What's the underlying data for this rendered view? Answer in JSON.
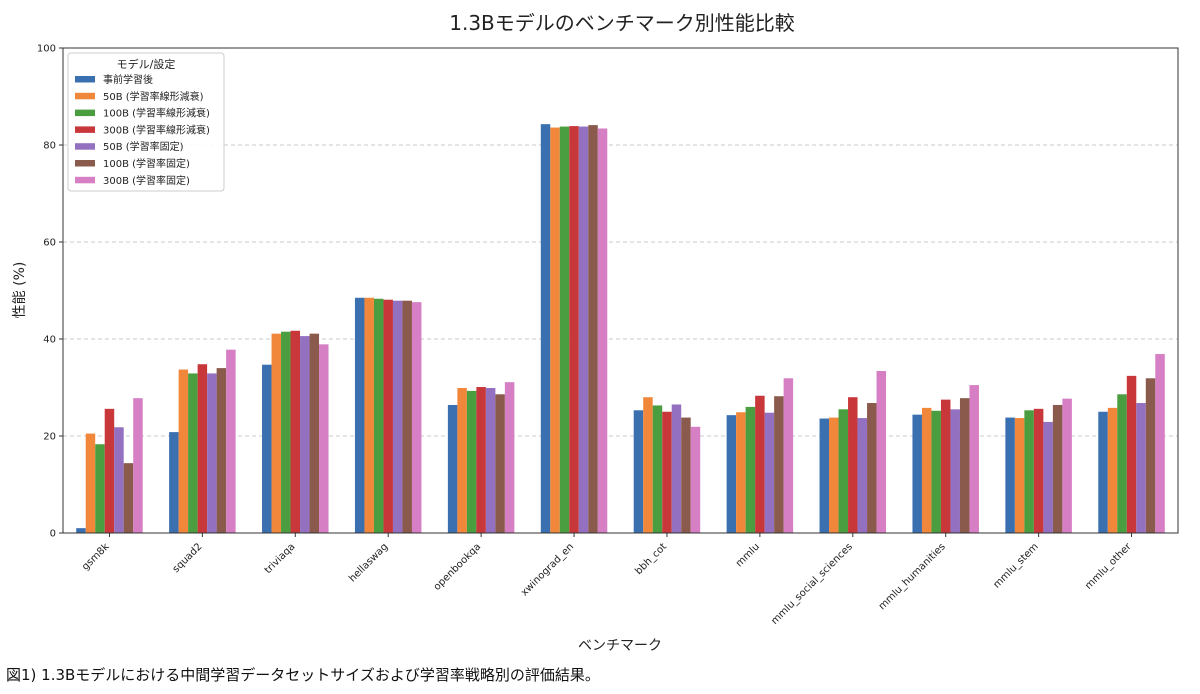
{
  "caption": "図1) 1.3Bモデルにおける中間学習データセットサイズおよび学習率戦略別の評価結果。",
  "chart_data": {
    "type": "bar",
    "title": "1.3Bモデルのベンチマーク別性能比較",
    "xlabel": "ベンチマーク",
    "ylabel": "性能 (%)",
    "ylim": [
      0,
      100
    ],
    "yticks": [
      0,
      20,
      40,
      60,
      80,
      100
    ],
    "grid": "y-dashed",
    "legend_title": "モデル/設定",
    "legend_position": "top-left",
    "categories": [
      "gsm8k",
      "squad2",
      "triviaqa",
      "hellaswag",
      "openbookqa",
      "xwinograd_en",
      "bbh_cot",
      "mmlu",
      "mmlu_social_sciences",
      "mmlu_humanities",
      "mmlu_stem",
      "mmlu_other"
    ],
    "series": [
      {
        "name": "事前学習後",
        "color": "#3a6fb0",
        "values": [
          1.0,
          20.8,
          34.7,
          48.5,
          26.4,
          84.3,
          25.3,
          24.3,
          23.6,
          24.4,
          23.8,
          25.0
        ]
      },
      {
        "name": "50B (学習率線形減衰)",
        "color": "#f0873a",
        "values": [
          20.5,
          33.7,
          41.1,
          48.5,
          29.9,
          83.6,
          28.0,
          24.9,
          23.8,
          25.8,
          23.7,
          25.8
        ]
      },
      {
        "name": "100B (学習率線形減衰)",
        "color": "#4a9e3f",
        "values": [
          18.3,
          32.9,
          41.5,
          48.3,
          29.3,
          83.8,
          26.3,
          26.0,
          25.5,
          25.2,
          25.3,
          28.6
        ]
      },
      {
        "name": "300B (学習率線形減衰)",
        "color": "#c8383a",
        "values": [
          25.6,
          34.8,
          41.7,
          48.1,
          30.1,
          83.9,
          25.0,
          28.3,
          28.0,
          27.5,
          25.6,
          32.4
        ]
      },
      {
        "name": "50B (学習率固定)",
        "color": "#9370c0",
        "values": [
          21.8,
          32.9,
          40.6,
          47.9,
          29.9,
          83.8,
          26.5,
          24.8,
          23.7,
          25.5,
          22.9,
          26.8
        ]
      },
      {
        "name": "100B (学習率固定)",
        "color": "#8a5a4c",
        "values": [
          14.4,
          34.0,
          41.1,
          47.9,
          28.6,
          84.1,
          23.8,
          28.2,
          26.8,
          27.8,
          26.4,
          31.9
        ]
      },
      {
        "name": "300B (学習率固定)",
        "color": "#d67fc4",
        "values": [
          27.8,
          37.8,
          38.9,
          47.6,
          31.1,
          83.4,
          21.9,
          31.9,
          33.4,
          30.5,
          27.7,
          36.9
        ]
      }
    ]
  }
}
